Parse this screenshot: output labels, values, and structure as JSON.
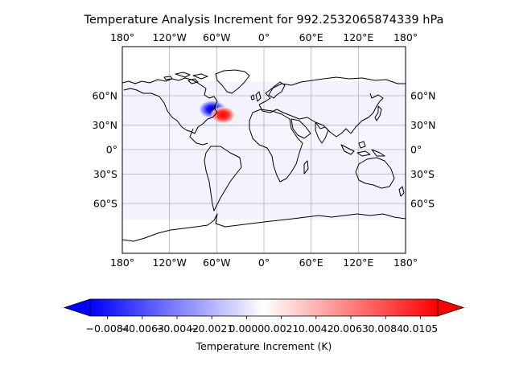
{
  "title": "Temperature Analysis Increment for  992.2532065874339 hPa",
  "map": {
    "lon_ticks": [
      "180°",
      "120°W",
      "60°W",
      "0°",
      "60°E",
      "120°E",
      "180°"
    ],
    "lat_ticks_left": [
      "60°N",
      "30°N",
      "0°",
      "30°S",
      "60°S"
    ],
    "lat_ticks_right": [
      "60°N",
      "30°N",
      "0°",
      "30°S",
      "60°S"
    ],
    "lon_extent": [
      -180,
      180
    ],
    "lat_extent": [
      -90,
      90
    ],
    "gridlines": true,
    "data_extent_lat": [
      -80,
      80
    ],
    "background_tint_K": -0.0004,
    "increments": [
      {
        "name": "negative-increment",
        "lon": -62,
        "lat": 47,
        "value": -0.0095
      },
      {
        "name": "positive-increment",
        "lon": -48,
        "lat": 40,
        "value": 0.0105
      }
    ],
    "colors": {
      "cmap_low": "#0000ff",
      "cmap_mid": "#ffffff",
      "cmap_high": "#ff0000",
      "coastline": "#000000",
      "grid": "#b0b0b0"
    }
  },
  "colorbar": {
    "label": "Temperature Increment (K)",
    "ticks": [
      "−0.0084",
      "−0.0063",
      "−0.0042",
      "−0.0021",
      "0.0000",
      "0.0021",
      "0.0042",
      "0.0063",
      "0.0084",
      "0.0105"
    ],
    "vmin": -0.0105,
    "vmax": 0.0105,
    "extend": "both"
  }
}
